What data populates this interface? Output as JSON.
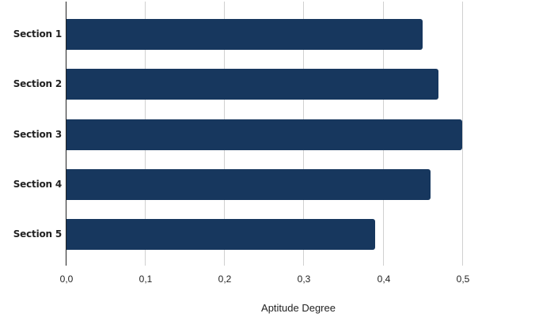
{
  "chart_data": {
    "type": "bar",
    "orientation": "horizontal",
    "title": "",
    "xlabel": "Aptitude Degree",
    "ylabel": "",
    "categories": [
      "Section 1",
      "Section 2",
      "Section 3",
      "Section 4",
      "Section 5"
    ],
    "values": [
      0.45,
      0.47,
      0.5,
      0.46,
      0.39
    ],
    "xlim": [
      0,
      0.5
    ],
    "xticks": [
      "0,0",
      "0,1",
      "0,2",
      "0,3",
      "0,4",
      "0,5"
    ],
    "grid": true,
    "legend": null,
    "bar_color": "#17375e"
  },
  "colors": {
    "bar": "#17375e",
    "grid": "#d0d0d0",
    "axis": "#222222",
    "text": "#222222"
  }
}
